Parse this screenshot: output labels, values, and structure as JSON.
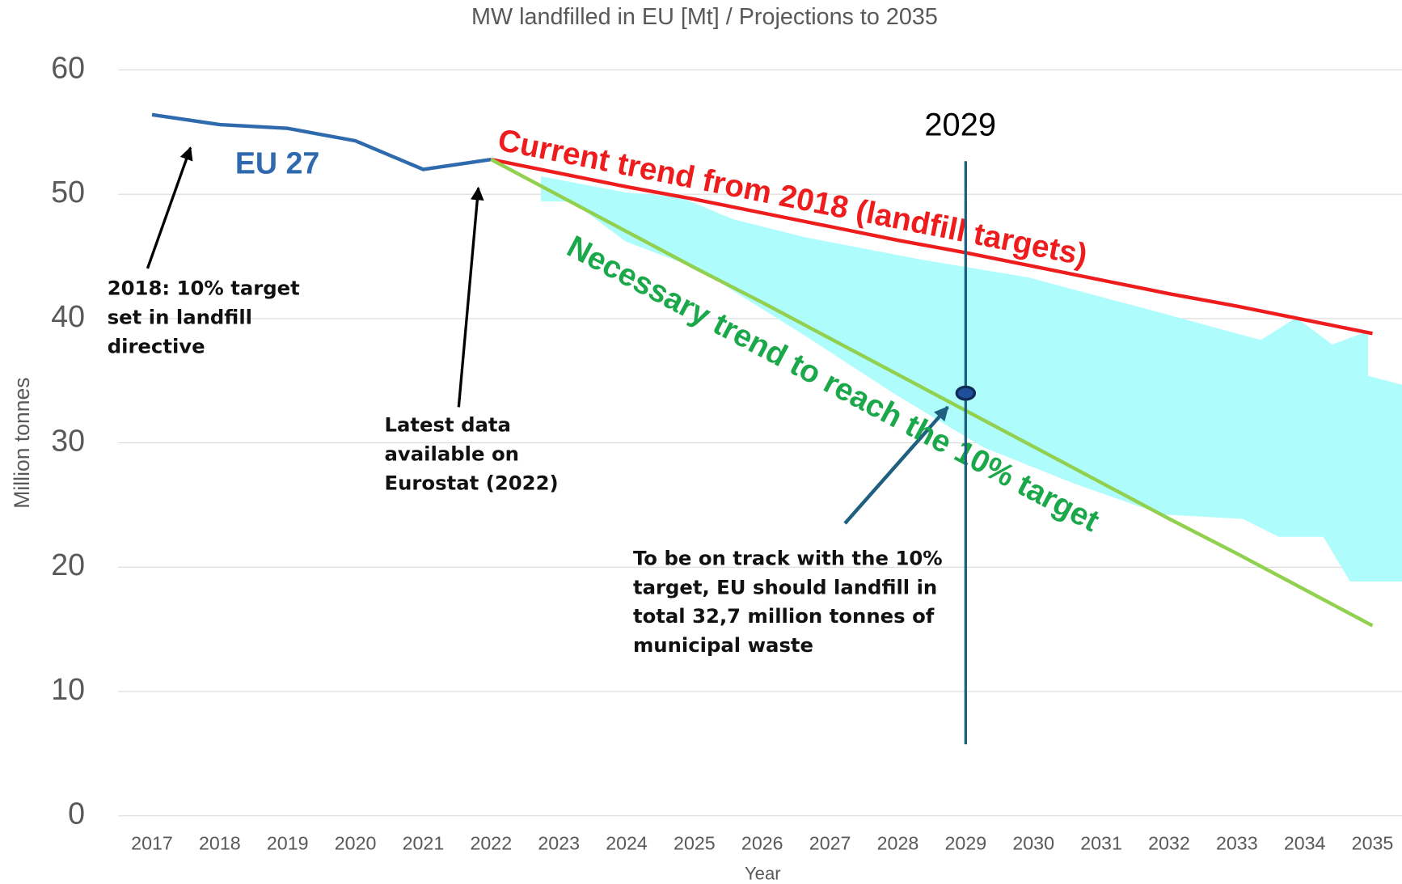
{
  "chart_data": {
    "type": "line",
    "title": "MW landfilled in EU [Mt] / Projections to 2035",
    "xlabel": "Year",
    "ylabel": "Million tonnes",
    "categories": [
      "2017",
      "2018",
      "2019",
      "2020",
      "2021",
      "2022",
      "2023",
      "2024",
      "2025",
      "2026",
      "2027",
      "2028",
      "2029",
      "2030",
      "2031",
      "2032",
      "2033",
      "2034",
      "2035"
    ],
    "ylim": [
      0,
      60
    ],
    "yticks": [
      0,
      10,
      20,
      30,
      40,
      50,
      60
    ],
    "grid": true,
    "series": [
      {
        "name": "EU 27",
        "color": "#2e6aad",
        "values": [
          56.4,
          55.6,
          55.3,
          54.3,
          52.0,
          52.8,
          null,
          null,
          null,
          null,
          null,
          null,
          null,
          null,
          null,
          null,
          null,
          null,
          null
        ]
      },
      {
        "name": "Current trend  from 2018 (landfill targets)",
        "color": "#ee1c1c",
        "values": [
          null,
          null,
          null,
          null,
          null,
          52.8,
          51.7,
          50.6,
          49.6,
          48.5,
          47.4,
          46.3,
          45.3,
          44.2,
          43.1,
          42.0,
          41.0,
          39.9,
          38.8
        ]
      },
      {
        "name": "Necessary trend to reach the 10% target",
        "color": "#92d050",
        "values": [
          null,
          null,
          null,
          null,
          null,
          52.8,
          49.9,
          47.0,
          44.1,
          41.3,
          38.4,
          35.5,
          32.6,
          29.7,
          26.8,
          23.9,
          21.1,
          18.2,
          15.3
        ]
      }
    ],
    "marker": {
      "x": "2029",
      "value": 34.0,
      "label": "2029"
    },
    "annotations": [
      [
        "2018: 10% target",
        "set in landfill",
        "directive"
      ],
      [
        "Latest data",
        "available on",
        "Eurostat (2022)"
      ],
      [
        "To be on track with the 10%",
        "target, EU should landfill in",
        "total 32,7 million tonnes of",
        "municipal waste"
      ]
    ]
  }
}
